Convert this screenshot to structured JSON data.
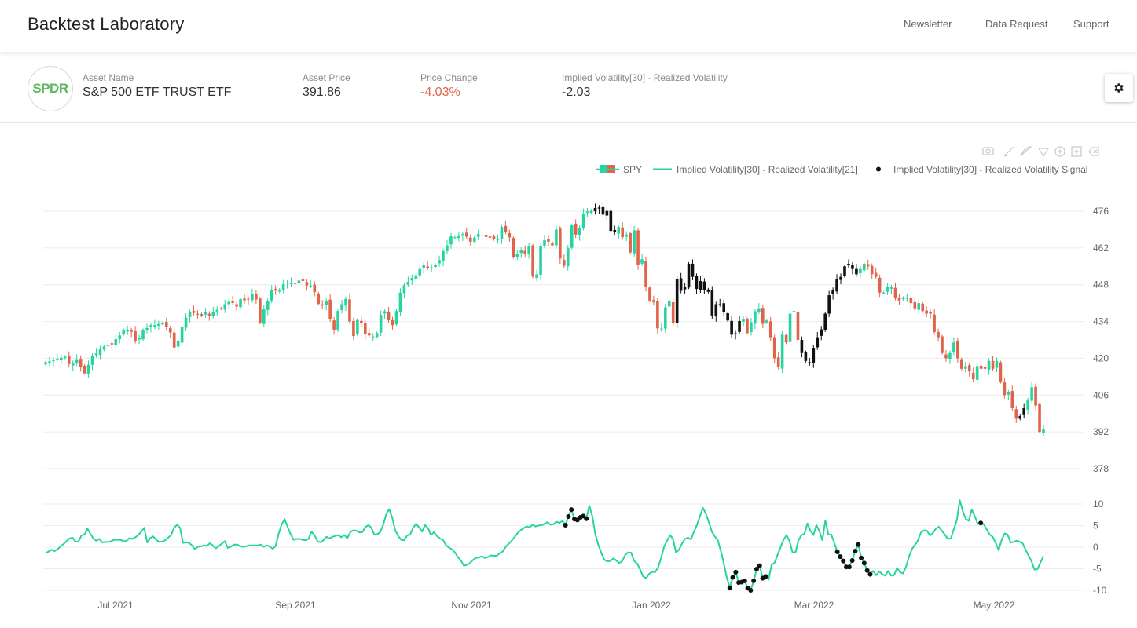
{
  "header": {
    "title": "Backtest Laboratory",
    "nav": [
      "Newsletter",
      "Data Request",
      "Support"
    ]
  },
  "asset": {
    "logo_text": "SPDR",
    "name_label": "Asset Name",
    "name": "S&P 500 ETF TRUST ETF",
    "price_label": "Asset Price",
    "price": "391.86",
    "change_label": "Price Change",
    "change": "-4.03%",
    "metric_label": "Implied Volatility[30] - Realized Volatility",
    "metric": "-2.03"
  },
  "icons": {
    "settings": "gear-icon",
    "toolbar": [
      "camera-icon",
      "draw-line-icon",
      "draw-path-icon",
      "draw-shape-icon",
      "zoom-in-icon",
      "add-shape-icon",
      "erase-icon"
    ]
  },
  "colors": {
    "up": "#26d4a0",
    "down": "#e0634a",
    "signal": "#111111",
    "grid": "#ececec",
    "axis_text": "#666666"
  },
  "chart_data": [
    {
      "type": "candlestick",
      "name": "SPY",
      "ylim": [
        378,
        476
      ],
      "yticks": [
        476,
        462,
        448,
        434,
        420,
        406,
        392,
        378
      ],
      "xlabels": [
        "Jul 2021",
        "Sep 2021",
        "Nov 2021",
        "Jan 2022",
        "Mar 2022",
        "May 2022"
      ],
      "legend": [
        "SPY",
        "Implied Volatility[30] - Realized Volatility[21]",
        "Implied Volatility[30] - Realized Volatility Signal"
      ],
      "close": [
        418.5,
        418.8,
        419.2,
        419.8,
        420.2,
        420.6,
        417.8,
        418.2,
        419.6,
        416.6,
        414.3,
        417.5,
        420.9,
        421.9,
        423.5,
        424.5,
        425.2,
        425.3,
        427.3,
        428.7,
        430.7,
        430.8,
        430.1,
        426.6,
        427.6,
        430.8,
        431.5,
        432.6,
        432.6,
        433,
        433.3,
        431.8,
        429.8,
        424.1,
        426.5,
        431.8,
        435.5,
        437.5,
        437.3,
        436.8,
        436.3,
        437.5,
        436.3,
        437.6,
        438.5,
        438.9,
        440.6,
        441.5,
        441.1,
        439.7,
        442.5,
        442.1,
        442.5,
        444.5,
        442.4,
        433.6,
        438.6,
        441.8,
        445.9,
        445.8,
        446.1,
        448.2,
        448.8,
        448.8,
        448.3,
        449.6,
        449.4,
        447.7,
        447.7,
        445.2,
        440.7,
        440.1,
        441.8,
        434.8,
        430.6,
        438,
        440.6,
        442.6,
        434,
        428.5,
        434.6,
        433.4,
        429.3,
        428.7,
        428.3,
        429.6,
        436.5,
        437.9,
        434.5,
        432.6,
        438,
        445,
        447.8,
        449.1,
        450.6,
        451.6,
        454,
        455.5,
        454.5,
        454.6,
        455.6,
        457.4,
        460.8,
        463,
        466.4,
        466,
        466.5,
        467.3,
        466.3,
        464.4,
        465.9,
        467.3,
        467,
        466.2,
        465.9,
        465.4,
        465.5,
        470,
        468.2,
        466,
        458.5,
        459.6,
        461.3,
        459.6,
        462.6,
        451.1,
        452,
        462.7,
        464.9,
        464.4,
        463,
        469,
        458,
        455.2,
        461.9,
        470.7,
        467.1,
        469.6,
        475,
        475.9,
        476.2,
        477.2,
        477,
        474.7,
        476.1,
        468.5,
        468,
        470,
        466.1,
        467.1,
        460.3,
        468.7,
        455.7,
        457.7,
        447.1,
        442,
        441.4,
        431.4,
        431.3,
        439.4,
        441.9,
        433.5,
        450.3,
        445.7,
        447.3,
        456,
        451,
        446.4,
        449.4,
        446,
        445.3,
        436.3,
        440.6,
        440.6,
        437.7,
        434.4,
        429,
        429.5,
        434.2,
        435,
        429.6,
        433.7,
        437.9,
        439,
        433.1,
        434.4,
        428,
        420,
        416.6,
        429,
        426,
        437,
        438,
        427,
        422,
        419,
        418.5,
        424,
        428,
        431,
        437,
        444,
        446,
        450,
        451,
        455,
        456,
        454,
        452,
        454,
        456,
        455,
        452,
        451,
        445,
        445,
        447,
        447,
        443,
        442,
        443,
        443,
        441,
        439,
        441,
        438,
        437,
        437,
        430,
        428,
        422,
        420,
        422,
        426,
        420,
        416,
        417,
        415,
        412,
        417,
        416,
        416,
        419,
        416,
        419,
        411,
        406,
        407,
        401,
        397,
        398,
        401,
        404,
        409,
        402,
        392,
        393
      ],
      "signal_ranges": [
        [
          141,
          146
        ],
        [
          162,
          178
        ],
        [
          194,
          208
        ],
        [
          250,
          251
        ]
      ]
    },
    {
      "type": "line",
      "name": "Implied Volatility[30] - Realized Volatility[21]",
      "ylim": [
        -10,
        10
      ],
      "yticks": [
        10,
        5,
        0,
        -5,
        -10
      ],
      "values": [
        -1.4,
        -1,
        -0.6,
        -0.9,
        -0.5,
        0.2,
        0.7,
        1.4,
        2,
        2.2,
        1.3,
        1.3,
        2.7,
        2.9,
        4.3,
        3.1,
        2,
        1.5,
        1.9,
        1.1,
        1.2,
        1.2,
        1.4,
        1.7,
        1.7,
        1.7,
        1.4,
        1.4,
        2.1,
        1.9,
        2.3,
        2.8,
        3.6,
        4.5,
        1.1,
        2.1,
        2.5,
        1.7,
        1.2,
        1.3,
        1.6,
        2.2,
        2.8,
        4.5,
        5.2,
        4.5,
        1,
        1.1,
        1,
        0.4,
        -0.5,
        0.1,
        0.2,
        0.4,
        0.3,
        0.9,
        0.4,
        -0.3,
        0.3,
        0.8,
        1.4,
        -0.2,
        0.1,
        0.6,
        0.6,
        0.3,
        0.1,
        0.2,
        0.4,
        0.4,
        0.4,
        0.4,
        0.6,
        0.1,
        0.4,
        0.2,
        -0.4,
        0.3,
        3.1,
        5.3,
        6.5,
        4.7,
        3,
        1.7,
        1.9,
        1.9,
        1.7,
        1.6,
        1.9,
        3.6,
        2.8,
        1.4,
        1.1,
        1.6,
        2.4,
        2,
        2.4,
        2.6,
        2.8,
        2.3,
        2.8,
        2.1,
        3.5,
        3.9,
        3.8,
        3.4,
        3.5,
        4.6,
        5.1,
        4.5,
        2.9,
        3,
        3.5,
        5.2,
        7.6,
        8.8,
        6.9,
        3.9,
        2.6,
        1.7,
        1.6,
        2.7,
        2.9,
        4.5,
        5.4,
        4.6,
        3.6,
        5.1,
        4.4,
        2.8,
        3.5,
        2.6,
        2,
        1.7,
        0.5,
        -0.1,
        -0.5,
        -1.2,
        -2.3,
        -3.1,
        -4.3,
        -4.1,
        -3.7,
        -3,
        -2.5,
        -2.4,
        -2.1,
        -2.5,
        -2.3,
        -1.9,
        -2,
        -2,
        -1.4,
        -1,
        0.1,
        0.8,
        1.5,
        2.4,
        3.3,
        3.9,
        4.4,
        4.8,
        4.6,
        5.2,
        4.8,
        5,
        5.1,
        5.4,
        5.8,
        5.2,
        5.3,
        5.9,
        5.6,
        6.1,
        5.1,
        7.1,
        8.7,
        6.5,
        6.3,
        6.9,
        7.2,
        6.6,
        9.6,
        7.2,
        3,
        0.6,
        -1.3,
        -2.9,
        -3.3,
        -3.2,
        -2.6,
        -3.1,
        -3.7,
        -3.2,
        -1.8,
        -1.2,
        -1.3,
        -3.2,
        -3.8,
        -5.2,
        -6.8,
        -7.2,
        -6.2,
        -5.7,
        -5.8,
        -4.7,
        -2.6,
        0.1,
        1.5,
        2.8,
        1.9,
        -1.2,
        -0.6,
        0.8,
        1.9,
        2.2,
        1.8,
        3.5,
        5.1,
        7.1,
        9.1,
        7.8,
        5.8,
        3.6,
        2.5,
        1.6,
        -0.8,
        -3.7,
        -7,
        -9.4,
        -7,
        -5.8,
        -8.2,
        -8.1,
        -7.8,
        -9.5,
        -10,
        -7.8,
        -5.1,
        -4.3,
        -7.2,
        -6.8,
        -7.5,
        -4.1,
        -3.6,
        -1.8,
        0,
        1.7,
        2.8,
        1.4,
        -1.2,
        -1.2,
        1.6,
        2.8,
        3.1,
        5.5,
        3.8,
        2.8,
        5.1,
        3.7,
        1.6,
        6.2,
        2.9,
        2.9,
        1,
        -1.1,
        -2.2,
        -3.2,
        -4.6,
        -4.6,
        -3.1,
        -0.9,
        0.6,
        -2.5,
        -3.7,
        -5.4,
        -6.3,
        -5.5,
        -6.5,
        -5.6,
        -6.3,
        -6.6,
        -5.5,
        -6.6,
        -6.5,
        -4.8,
        -5.8,
        -6.1,
        -4.5,
        -2.2,
        -0.4,
        0.5,
        1.6,
        3.4,
        3.9,
        3.8,
        2.7,
        3.3,
        4.3,
        4.7,
        3.8,
        2.9,
        1.9,
        2,
        4.2,
        6.2,
        10.9,
        8.4,
        6.5,
        6.1,
        8.7,
        7.2,
        5.4,
        5.6,
        5.3,
        4.1,
        2.9,
        2.4,
        1,
        -0.7,
        1.7,
        3.2,
        2.9,
        1.1,
        1.2,
        1.5,
        1.3,
        0.9,
        -0.6,
        -1.9,
        -3.3,
        -5.2,
        -5.1,
        -3.5,
        -2.1
      ],
      "signal_ranges": [
        [
          174,
          181
        ],
        [
          229,
          241
        ],
        [
          265,
          276
        ],
        [
          313,
          313
        ]
      ]
    }
  ]
}
